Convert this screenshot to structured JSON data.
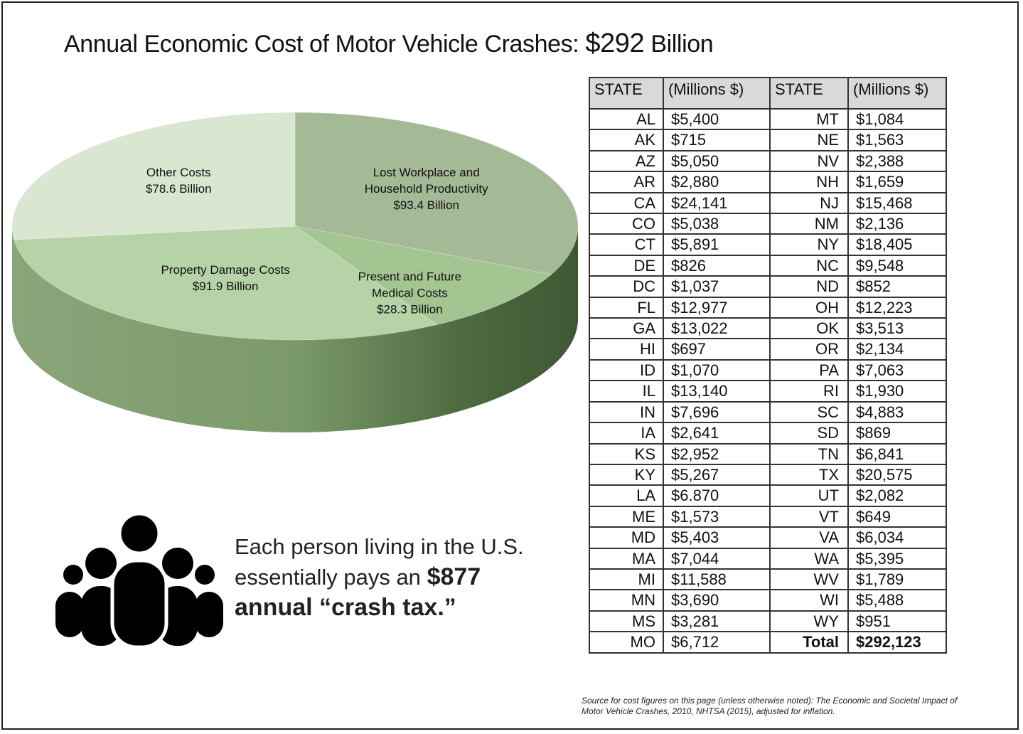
{
  "title": {
    "text": "Annual Economic Cost of Motor Vehicle Crashes:",
    "amount": "$292",
    "unit": "Billion"
  },
  "chart_data": {
    "type": "pie",
    "title": "Annual Economic Cost of Motor Vehicle Crashes: $292 Billion",
    "unit": "Billion $",
    "slices": [
      {
        "name": "Lost Workplace and Household Productivity",
        "value": 93.4,
        "label_lines": [
          "Lost Workplace and",
          "Household Productivity",
          "$93.4 Billion"
        ],
        "color": "#a4b996"
      },
      {
        "name": "Present and Future Medical Costs",
        "value": 28.3,
        "label_lines": [
          "Present and Future",
          "Medical Costs",
          "$28.3 Billion"
        ],
        "color": "#a3c591"
      },
      {
        "name": "Property Damage Costs",
        "value": 91.9,
        "label_lines": [
          "Property Damage Costs",
          "$91.9 Billion"
        ],
        "color": "#b5d3a6"
      },
      {
        "name": "Other Costs",
        "value": 78.6,
        "label_lines": [
          "Other Costs",
          "$78.6 Billion"
        ],
        "color": "#d9e6d0"
      }
    ]
  },
  "table": {
    "headers": [
      "STATE",
      "(Millions $)",
      "STATE",
      "(Millions $)"
    ],
    "rows": [
      [
        "AL",
        "$5,400",
        "MT",
        "$1,084"
      ],
      [
        "AK",
        "$715",
        "NE",
        "$1,563"
      ],
      [
        "AZ",
        "$5,050",
        "NV",
        "$2,388"
      ],
      [
        "AR",
        "$2,880",
        "NH",
        "$1,659"
      ],
      [
        "CA",
        "$24,141",
        "NJ",
        "$15,468"
      ],
      [
        "CO",
        "$5,038",
        "NM",
        "$2,136"
      ],
      [
        "CT",
        "$5,891",
        "NY",
        "$18,405"
      ],
      [
        "DE",
        "$826",
        "NC",
        "$9,548"
      ],
      [
        "DC",
        "$1,037",
        "ND",
        "$852"
      ],
      [
        "FL",
        "$12,977",
        "OH",
        "$12,223"
      ],
      [
        "GA",
        "$13,022",
        "OK",
        "$3,513"
      ],
      [
        "HI",
        "$697",
        "OR",
        "$2,134"
      ],
      [
        "ID",
        "$1,070",
        "PA",
        "$7,063"
      ],
      [
        "IL",
        "$13,140",
        "RI",
        "$1,930"
      ],
      [
        "IN",
        "$7,696",
        "SC",
        "$4,883"
      ],
      [
        "IA",
        "$2,641",
        "SD",
        "$869"
      ],
      [
        "KS",
        "$2,952",
        "TN",
        "$6,841"
      ],
      [
        "KY",
        "$5,267",
        "TX",
        "$20,575"
      ],
      [
        "LA",
        "$6.870",
        "UT",
        "$2,082"
      ],
      [
        "ME",
        "$1,573",
        "VT",
        "$649"
      ],
      [
        "MD",
        "$5,403",
        "VA",
        "$6,034"
      ],
      [
        "MA",
        "$7,044",
        "WA",
        "$5,395"
      ],
      [
        "MI",
        "$11,588",
        "WV",
        "$1,789"
      ],
      [
        "MN",
        "$3,690",
        "WI",
        "$5,488"
      ],
      [
        "MS",
        "$3,281",
        "WY",
        "$951"
      ],
      [
        "MO",
        "$6,712",
        "Total",
        "$292,123"
      ]
    ]
  },
  "crash_tax": {
    "line1": "Each person living in the U.S.",
    "line2_prefix": "essentially pays an",
    "amount": "$877",
    "line3": "annual “crash tax.”",
    "icon": "people-group-icon"
  },
  "source": {
    "line1": "Source for cost figures on this page (unless otherwise noted): The Economic and Societal Impact of",
    "line2": "Motor Vehicle Crashes, 2010, NHTSA (2015), adjusted for inflation."
  }
}
